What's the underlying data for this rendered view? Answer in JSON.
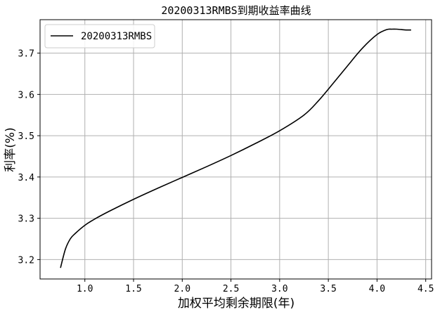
{
  "chart_data": {
    "type": "line",
    "title": "20200313RMBS到期收益率曲线",
    "xlabel": "加权平均剩余期限(年)",
    "ylabel": "利率(%)",
    "xlim": [
      0.54,
      4.56
    ],
    "ylim": [
      3.153,
      3.781
    ],
    "xticks": [
      "1.0",
      "1.5",
      "2.0",
      "2.5",
      "3.0",
      "3.5",
      "4.0",
      "4.5"
    ],
    "yticks": [
      "3.2",
      "3.3",
      "3.4",
      "3.5",
      "3.6",
      "3.7"
    ],
    "grid": true,
    "legend_position": "upper-left",
    "series": [
      {
        "name": "20200313RMBS",
        "color": "#000000",
        "x": [
          0.75,
          0.8,
          0.85,
          0.9,
          1.0,
          1.1,
          1.25,
          1.5,
          1.75,
          2.0,
          2.25,
          2.5,
          2.75,
          3.0,
          3.25,
          3.4,
          3.55,
          3.7,
          3.85,
          4.0,
          4.1,
          4.15,
          4.2,
          4.25,
          4.3,
          4.35
        ],
        "y": [
          3.18,
          3.225,
          3.25,
          3.263,
          3.283,
          3.298,
          3.317,
          3.346,
          3.373,
          3.399,
          3.425,
          3.452,
          3.481,
          3.512,
          3.55,
          3.585,
          3.627,
          3.67,
          3.712,
          3.745,
          3.757,
          3.758,
          3.758,
          3.757,
          3.756,
          3.756
        ]
      }
    ]
  }
}
